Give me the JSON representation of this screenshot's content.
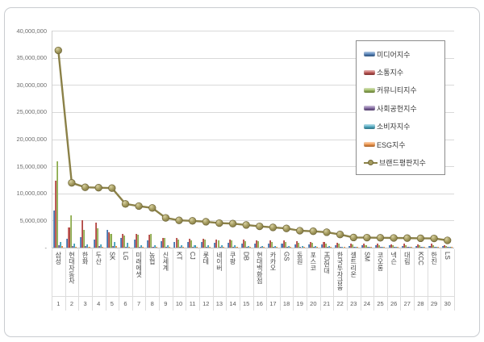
{
  "chart_data": {
    "type": "bar",
    "subtype": "grouped-bars-with-line",
    "title": "",
    "xlabel": "",
    "ylabel": "",
    "grid": true,
    "legend_position": "top-right",
    "y_axis": {
      "min": 0,
      "max": 40000000,
      "step": 5000000,
      "tick_labels_top_down": [
        "40,000,000",
        "35,000,000",
        "30,000,000",
        "25,000,000",
        "20,000,000",
        "15,000,000",
        "10,000,000",
        "5,000,000",
        "-"
      ]
    },
    "categories": [
      "삼성",
      "현대자동차",
      "한화",
      "두산",
      "SK",
      "LG",
      "미래에셋",
      "농협",
      "신세계",
      "KT",
      "CJ",
      "롯데",
      "네이버",
      "쿠팡",
      "DB",
      "현대백화점",
      "카카오",
      "GS",
      "동원",
      "포스코",
      "HD현대",
      "한국투자금융",
      "셀트리온",
      "SM",
      "코오롱",
      "넥슨",
      "대림",
      "KCC",
      "한진",
      "LS"
    ],
    "ranks": [
      "1",
      "2",
      "3",
      "4",
      "5",
      "6",
      "7",
      "8",
      "9",
      "10",
      "11",
      "12",
      "13",
      "14",
      "15",
      "16",
      "17",
      "18",
      "19",
      "20",
      "21",
      "22",
      "23",
      "24",
      "25",
      "26",
      "27",
      "28",
      "29",
      "30"
    ],
    "series": [
      {
        "name": "미디어지수",
        "type": "bar",
        "color": "#4F81BD",
        "values": [
          6800000,
          1650000,
          2000000,
          1500000,
          3250000,
          1800000,
          1500000,
          1350000,
          1250000,
          1100000,
          1000000,
          1100000,
          900000,
          850000,
          800000,
          750000,
          800000,
          700000,
          550000,
          600000,
          550000,
          450000,
          350000,
          400000,
          400000,
          450000,
          300000,
          350000,
          300000,
          300000
        ]
      },
      {
        "name": "소통지수",
        "type": "bar",
        "color": "#C0504D",
        "values": [
          12400000,
          3750000,
          5100000,
          4600000,
          2850000,
          2600000,
          2600000,
          2400000,
          1850000,
          1750000,
          1700000,
          1600000,
          1500000,
          1550000,
          1500000,
          1400000,
          1350000,
          1300000,
          1200000,
          1100000,
          1050000,
          950000,
          700000,
          750000,
          700000,
          600000,
          750000,
          650000,
          700000,
          500000
        ]
      },
      {
        "name": "커뮤니티지수",
        "type": "bar",
        "color": "#9BBB59",
        "values": [
          15900000,
          5950000,
          3300000,
          3600000,
          2500000,
          2200000,
          2400000,
          2500000,
          1750000,
          1500000,
          1400000,
          1500000,
          1400000,
          1300000,
          1200000,
          1150000,
          1100000,
          1050000,
          900000,
          850000,
          800000,
          700000,
          550000,
          500000,
          500000,
          500000,
          450000,
          450000,
          400000,
          350000
        ]
      },
      {
        "name": "사회공헌지수",
        "type": "bar",
        "color": "#8064A2",
        "values": [
          450000,
          300000,
          250000,
          250000,
          350000,
          200000,
          200000,
          200000,
          150000,
          150000,
          150000,
          150000,
          120000,
          120000,
          120000,
          100000,
          100000,
          100000,
          100000,
          100000,
          100000,
          80000,
          80000,
          80000,
          80000,
          80000,
          70000,
          70000,
          70000,
          60000
        ]
      },
      {
        "name": "소비자지수",
        "type": "bar",
        "color": "#4BACC6",
        "values": [
          1000000,
          750000,
          550000,
          550000,
          1000000,
          900000,
          500000,
          500000,
          450000,
          400000,
          400000,
          450000,
          400000,
          450000,
          350000,
          300000,
          350000,
          300000,
          250000,
          250000,
          250000,
          200000,
          200000,
          180000,
          180000,
          200000,
          150000,
          150000,
          150000,
          120000
        ]
      },
      {
        "name": "ESG지수",
        "type": "bar",
        "color": "#F79646",
        "values": [
          300000,
          200000,
          200000,
          200000,
          250000,
          200000,
          180000,
          180000,
          150000,
          150000,
          150000,
          150000,
          120000,
          120000,
          120000,
          100000,
          100000,
          100000,
          100000,
          100000,
          100000,
          80000,
          80000,
          80000,
          80000,
          80000,
          70000,
          70000,
          70000,
          60000
        ]
      },
      {
        "name": "브랜드평판지수",
        "type": "line",
        "color": "#948A54",
        "line_color": "#8B8148",
        "marker_fill": "#A59C60",
        "marker_edge": "#6E6537",
        "values": [
          36350000,
          11940000,
          11130000,
          11050000,
          10970000,
          8060000,
          7660000,
          7310000,
          5480000,
          5030000,
          4930000,
          4780000,
          4520000,
          4430000,
          4180000,
          3930000,
          3730000,
          3540000,
          3130000,
          3020000,
          2840000,
          2430000,
          1880000,
          1850000,
          1820000,
          1790000,
          1760000,
          1730000,
          1700000,
          1340000
        ]
      }
    ]
  }
}
